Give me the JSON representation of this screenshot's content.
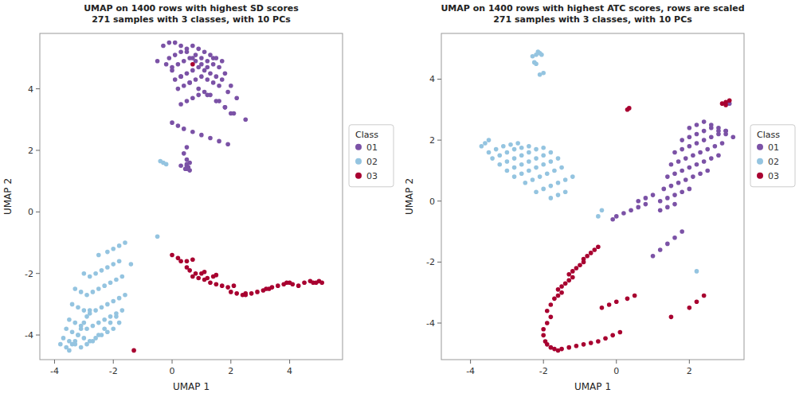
{
  "chart_data": [
    {
      "type": "scatter",
      "title": "UMAP on 1400 rows with highest SD scores\n271 samples with 3 classes, with 10 PCs",
      "x_label": "UMAP 1",
      "y_label": "UMAP 2",
      "xlim": [
        -4.5,
        5.8
      ],
      "ylim": [
        -4.8,
        5.8
      ],
      "xticks": [
        -4,
        -2,
        0,
        2,
        4
      ],
      "yticks": [
        -4,
        -2,
        0,
        2,
        4
      ],
      "grid": false,
      "legend": "right",
      "legend_title": "Class",
      "series": [
        {
          "name": "01",
          "color": "#7B52A6",
          "x": [
            -0.3,
            -0.1,
            0.1,
            0.3,
            0.5,
            0.7,
            0.8,
            1.0,
            1.2,
            1.4,
            -0.1,
            0.1,
            0.3,
            0.5,
            0.7,
            0.9,
            1.1,
            1.3,
            1.5,
            1.7,
            0.0,
            0.2,
            0.4,
            0.6,
            0.8,
            1.0,
            1.2,
            1.4,
            1.6,
            1.8,
            0.1,
            0.3,
            0.5,
            0.7,
            0.9,
            1.1,
            1.3,
            1.5,
            1.7,
            2.0,
            0.2,
            0.4,
            0.6,
            0.8,
            1.0,
            1.2,
            1.4,
            1.6,
            1.9,
            2.2,
            0.3,
            0.5,
            0.7,
            0.9,
            1.1,
            1.3,
            1.6,
            1.8,
            2.1,
            2.5,
            -0.5,
            -0.2,
            0.0,
            0.3,
            0.6,
            0.9,
            1.2,
            1.5,
            1.8,
            2.0,
            0.0,
            0.2,
            0.4,
            0.7,
            1.0,
            1.3,
            1.6,
            1.9,
            0.5,
            0.4,
            0.5,
            0.6,
            0.5,
            0.5,
            0.6,
            0.3,
            0.5,
            0.45,
            0.55
          ],
          "values": [
            5.4,
            5.5,
            5.5,
            5.4,
            5.2,
            5.0,
            4.9,
            4.8,
            4.7,
            5.0,
            5.0,
            5.1,
            5.2,
            5.3,
            5.4,
            5.3,
            5.2,
            5.1,
            5.0,
            4.9,
            4.7,
            4.8,
            4.9,
            5.0,
            5.1,
            5.0,
            4.9,
            4.8,
            4.7,
            4.5,
            4.3,
            4.4,
            4.5,
            4.6,
            4.7,
            4.6,
            4.5,
            4.4,
            4.3,
            4.1,
            4.0,
            4.1,
            4.2,
            4.3,
            4.4,
            4.3,
            4.2,
            4.1,
            3.9,
            3.7,
            3.5,
            3.6,
            3.7,
            3.8,
            3.9,
            3.8,
            3.6,
            3.4,
            3.2,
            3.0,
            4.9,
            4.8,
            4.6,
            4.4,
            4.2,
            4.0,
            3.8,
            3.6,
            3.4,
            3.2,
            2.9,
            2.8,
            2.7,
            2.6,
            2.5,
            2.4,
            2.3,
            2.2,
            2.1,
            1.9,
            1.7,
            1.6,
            1.5,
            1.4,
            1.35,
            1.5,
            1.55,
            1.4,
            1.45
          ]
        },
        {
          "name": "02",
          "color": "#94C4E0",
          "x": [
            -3.8,
            -3.6,
            -3.5,
            -3.4,
            -3.3,
            -3.2,
            -3.1,
            -3.0,
            -2.9,
            -2.8,
            -3.7,
            -3.5,
            -3.3,
            -3.1,
            -2.9,
            -2.7,
            -2.5,
            -2.3,
            -2.1,
            -1.9,
            -3.6,
            -3.4,
            -3.2,
            -3.0,
            -2.8,
            -2.6,
            -2.4,
            -2.2,
            -2.0,
            -1.8,
            -3.5,
            -3.3,
            -3.1,
            -2.9,
            -2.7,
            -2.5,
            -2.3,
            -2.1,
            -1.9,
            -1.7,
            -3.4,
            -3.2,
            -3.0,
            -2.8,
            -2.6,
            -2.4,
            -2.2,
            -2.0,
            -1.8,
            -1.6,
            -3.3,
            -3.1,
            -2.9,
            -2.7,
            -2.5,
            -2.3,
            -2.1,
            -1.9,
            -1.7,
            -3.0,
            -2.8,
            -2.6,
            -2.4,
            -2.2,
            -2.0,
            -1.8,
            -2.5,
            -2.2,
            -2.0,
            -1.8,
            -1.6,
            -0.5,
            -0.4,
            -0.3,
            -0.2,
            -1.4
          ],
          "values": [
            -4.3,
            -4.4,
            -4.5,
            -4.3,
            -4.2,
            -4.0,
            -3.8,
            -3.6,
            -3.4,
            -3.2,
            -4.1,
            -4.2,
            -4.3,
            -4.4,
            -4.3,
            -4.2,
            -4.0,
            -3.8,
            -3.6,
            -3.4,
            -3.8,
            -3.9,
            -4.0,
            -4.1,
            -4.2,
            -4.1,
            -4.0,
            -3.9,
            -3.8,
            -3.6,
            -3.5,
            -3.6,
            -3.7,
            -3.8,
            -3.7,
            -3.6,
            -3.5,
            -3.4,
            -3.3,
            -3.2,
            -3.0,
            -3.1,
            -3.2,
            -3.3,
            -3.2,
            -3.1,
            -3.0,
            -2.9,
            -2.8,
            -2.7,
            -2.5,
            -2.6,
            -2.7,
            -2.6,
            -2.5,
            -2.4,
            -2.3,
            -2.2,
            -2.1,
            -2.0,
            -2.1,
            -2.0,
            -1.9,
            -1.8,
            -1.7,
            -1.6,
            -1.4,
            -1.3,
            -1.2,
            -1.1,
            -1.0,
            -0.8,
            1.65,
            1.6,
            1.55,
            -1.7
          ]
        },
        {
          "name": "03",
          "color": "#A80030",
          "x": [
            0.0,
            0.2,
            0.3,
            0.5,
            0.7,
            0.5,
            0.6,
            0.8,
            1.0,
            1.1,
            0.7,
            0.9,
            1.1,
            1.2,
            1.4,
            1.5,
            1.3,
            1.5,
            1.7,
            1.9,
            2.1,
            2.0,
            2.2,
            2.4,
            2.5,
            2.5,
            2.7,
            2.9,
            3.1,
            3.3,
            3.2,
            3.4,
            3.6,
            3.8,
            4.0,
            3.9,
            4.1,
            4.3,
            4.5,
            4.7,
            4.9,
            4.8,
            5.0,
            5.1,
            -1.3,
            0.7
          ],
          "values": [
            -1.4,
            -1.5,
            -1.6,
            -1.6,
            -1.55,
            -1.8,
            -1.9,
            -2.0,
            -2.0,
            -1.95,
            -2.1,
            -2.15,
            -2.2,
            -2.15,
            -2.1,
            -2.05,
            -2.3,
            -2.35,
            -2.4,
            -2.45,
            -2.4,
            -2.6,
            -2.65,
            -2.7,
            -2.65,
            -2.7,
            -2.65,
            -2.6,
            -2.55,
            -2.5,
            -2.5,
            -2.45,
            -2.4,
            -2.35,
            -2.3,
            -2.3,
            -2.35,
            -2.4,
            -2.3,
            -2.25,
            -2.3,
            -2.3,
            -2.25,
            -2.3,
            -4.5,
            4.8
          ]
        }
      ]
    },
    {
      "type": "scatter",
      "title": "UMAP on 1400 rows with highest ATC scores, rows are scaled\n271 samples with 3 classes, with 10 PCs",
      "x_label": "UMAP 1",
      "y_label": "UMAP 2",
      "xlim": [
        -4.8,
        3.5
      ],
      "ylim": [
        -5.2,
        5.5
      ],
      "xticks": [
        -4,
        -2,
        0,
        2
      ],
      "yticks": [
        -4,
        -2,
        0,
        2,
        4
      ],
      "grid": false,
      "legend": "right",
      "legend_title": "Class",
      "series": [
        {
          "name": "01",
          "color": "#7B52A6",
          "x": [
            2.0,
            2.2,
            2.4,
            2.6,
            2.8,
            3.0,
            3.1,
            1.8,
            2.0,
            2.2,
            2.4,
            2.6,
            2.8,
            3.0,
            3.2,
            1.6,
            1.8,
            2.0,
            2.2,
            2.4,
            2.6,
            2.8,
            3.0,
            1.5,
            1.7,
            1.9,
            2.1,
            2.3,
            2.5,
            2.7,
            2.9,
            1.4,
            1.6,
            1.8,
            2.0,
            2.2,
            2.4,
            2.6,
            2.8,
            1.3,
            1.5,
            1.7,
            1.9,
            2.1,
            2.3,
            2.5,
            1.2,
            1.4,
            1.6,
            1.8,
            2.0,
            1.2,
            1.4,
            1.6,
            0.8,
            0.6,
            0.4,
            0.2,
            0.0,
            -0.1,
            1.0,
            0.8,
            0.6,
            1.8,
            1.6,
            1.4,
            1.2,
            1.0
          ],
          "values": [
            2.4,
            2.5,
            2.6,
            2.5,
            2.4,
            2.3,
            3.2,
            2.0,
            2.1,
            2.2,
            2.3,
            2.4,
            2.3,
            2.2,
            2.1,
            1.6,
            1.7,
            1.8,
            1.9,
            2.0,
            2.1,
            2.2,
            2.3,
            1.2,
            1.3,
            1.4,
            1.5,
            1.6,
            1.7,
            1.8,
            1.9,
            0.8,
            0.9,
            1.0,
            1.1,
            1.2,
            1.3,
            1.4,
            1.5,
            0.4,
            0.5,
            0.6,
            0.7,
            0.8,
            0.9,
            1.0,
            0.0,
            0.1,
            0.2,
            0.3,
            0.4,
            -0.3,
            -0.2,
            -0.1,
            -0.1,
            -0.2,
            -0.3,
            -0.4,
            -0.5,
            -0.6,
            0.2,
            0.1,
            0.0,
            -1.0,
            -1.2,
            -1.4,
            -1.6,
            -1.8
          ]
        },
        {
          "name": "02",
          "color": "#94C4E0",
          "x": [
            -2.2,
            -2.1,
            -2.3,
            -2.15,
            -2.05,
            -2.2,
            -2.25,
            -2.0,
            -2.1,
            -3.7,
            -3.6,
            -3.5,
            -3.5,
            -3.3,
            -3.1,
            -2.9,
            -2.7,
            -3.4,
            -3.2,
            -3.0,
            -2.8,
            -2.6,
            -2.4,
            -3.2,
            -3.0,
            -2.8,
            -2.6,
            -2.4,
            -2.2,
            -2.0,
            -3.0,
            -2.8,
            -2.6,
            -2.4,
            -2.2,
            -2.0,
            -1.8,
            -2.8,
            -2.6,
            -2.4,
            -2.2,
            -2.0,
            -1.8,
            -1.6,
            -2.5,
            -2.3,
            -2.1,
            -1.9,
            -1.7,
            -1.5,
            -2.2,
            -2.0,
            -1.8,
            -1.6,
            -1.4,
            -1.2,
            -1.8,
            -1.6,
            -1.4,
            -0.4,
            -0.5,
            2.2
          ],
          "values": [
            4.8,
            4.85,
            4.75,
            4.9,
            4.8,
            4.5,
            4.55,
            4.2,
            4.15,
            1.8,
            1.9,
            2.0,
            1.6,
            1.7,
            1.8,
            1.85,
            1.9,
            1.4,
            1.5,
            1.6,
            1.7,
            1.75,
            1.8,
            1.2,
            1.3,
            1.4,
            1.5,
            1.6,
            1.7,
            1.75,
            1.0,
            1.1,
            1.2,
            1.3,
            1.4,
            1.5,
            1.6,
            0.8,
            0.9,
            1.0,
            1.1,
            1.2,
            1.3,
            1.4,
            0.6,
            0.7,
            0.8,
            0.9,
            1.0,
            1.1,
            0.3,
            0.4,
            0.5,
            0.6,
            0.7,
            0.8,
            0.1,
            0.2,
            0.3,
            -0.3,
            -0.5,
            -2.3
          ]
        },
        {
          "name": "03",
          "color": "#A80030",
          "x": [
            0.3,
            0.35,
            2.9,
            3.0,
            3.1,
            3.0,
            -0.5,
            -0.6,
            -0.7,
            -0.8,
            -0.9,
            -0.9,
            -1.0,
            -1.1,
            -1.2,
            -1.3,
            -1.2,
            -1.3,
            -1.4,
            -1.5,
            -1.6,
            -1.5,
            -1.6,
            -1.7,
            -1.8,
            -1.9,
            -1.8,
            -1.9,
            -2.0,
            -2.0,
            -1.95,
            -1.9,
            -1.8,
            -1.7,
            -1.6,
            -1.5,
            -1.3,
            -1.1,
            -0.9,
            -0.7,
            -0.5,
            -0.3,
            -0.1,
            0.1,
            -0.4,
            -0.2,
            0.0,
            0.3,
            0.5,
            1.5,
            2.0,
            2.2,
            2.4
          ],
          "values": [
            3.0,
            3.05,
            3.2,
            3.25,
            3.3,
            3.15,
            -1.5,
            -1.6,
            -1.7,
            -1.8,
            -1.9,
            -2.0,
            -2.1,
            -2.2,
            -2.3,
            -2.4,
            -2.5,
            -2.6,
            -2.7,
            -2.8,
            -2.9,
            -3.0,
            -3.1,
            -3.2,
            -3.4,
            -3.6,
            -3.8,
            -4.0,
            -4.2,
            -4.4,
            -4.6,
            -4.7,
            -4.8,
            -4.85,
            -4.9,
            -4.85,
            -4.8,
            -4.75,
            -4.7,
            -4.65,
            -4.6,
            -4.5,
            -4.4,
            -4.3,
            -3.5,
            -3.4,
            -3.3,
            -3.2,
            -3.1,
            -3.8,
            -3.5,
            -3.3,
            -3.1
          ]
        }
      ]
    }
  ]
}
